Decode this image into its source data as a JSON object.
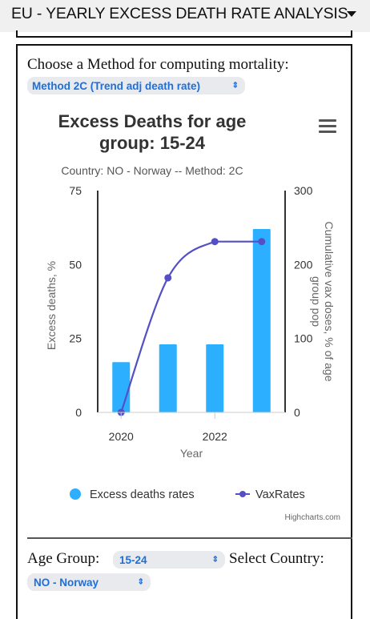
{
  "header": {
    "title": "EU - YEARLY EXCESS DEATH RATE ANALYSIS"
  },
  "method": {
    "label": "Choose a Method for computing mortality:",
    "selected": "Method 2C (Trend adj death rate)"
  },
  "filters": {
    "age_label": "Age Group:",
    "age_value": "15-24",
    "country_label": "Select Country:",
    "country_value": "NO - Norway"
  },
  "credits": "Highcharts.com",
  "chart_data": {
    "type": "bar",
    "title": "Excess Deaths for age group: 15-24",
    "title_lines": [
      "Excess Deaths for age",
      "group: 15-24"
    ],
    "subtitle": "Country: NO - Norway -- Method: 2C",
    "xlabel": "Year",
    "ylabel": "Excess deaths, %",
    "y2label_lines": [
      "Cumulative vax doses, % of age",
      "group pop"
    ],
    "x": [
      2020,
      2021,
      2022,
      2023
    ],
    "x_ticks": [
      2020,
      2022
    ],
    "ylim": [
      0,
      75
    ],
    "y_ticks": [
      0,
      25,
      50,
      75
    ],
    "y2lim": [
      0,
      300
    ],
    "y2_ticks": [
      0,
      100,
      200,
      300
    ],
    "grid": false,
    "legend_position": "bottom",
    "series": [
      {
        "name": "Excess deaths rates",
        "type": "bar",
        "axis": "left",
        "color": "#2caffe",
        "values": [
          17,
          23,
          23,
          62
        ]
      },
      {
        "name": "VaxRates",
        "type": "line",
        "axis": "right",
        "color": "#544fc5",
        "values": [
          0,
          182,
          231,
          231
        ]
      }
    ]
  }
}
